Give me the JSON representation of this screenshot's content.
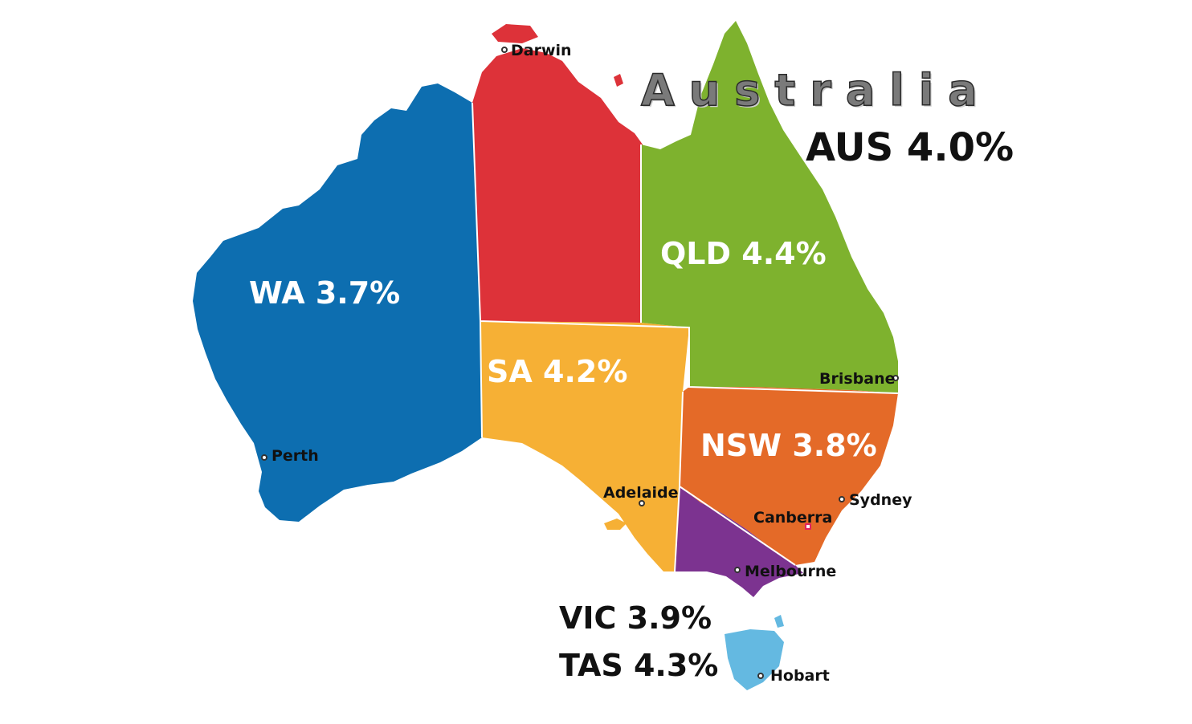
{
  "map": {
    "title": "Australia",
    "national": "AUS 4.0%",
    "colors": {
      "wa": "#0d6eb0",
      "nt": "#dd3239",
      "sa": "#f6b035",
      "qld": "#7eb22e",
      "nsw": "#e46a28",
      "vic": "#7c3390",
      "tas": "#64b9e1"
    },
    "states": [
      {
        "key": "wa",
        "label": "WA 3.7%"
      },
      {
        "key": "sa",
        "label": "SA 4.2%"
      },
      {
        "key": "qld",
        "label": "QLD 4.4%"
      },
      {
        "key": "nsw",
        "label": "NSW 3.8%"
      },
      {
        "key": "vic",
        "label": "VIC 3.9%"
      },
      {
        "key": "tas",
        "label": "TAS 4.3%"
      }
    ],
    "cities": [
      "Darwin",
      "Perth",
      "Adelaide",
      "Brisbane",
      "Sydney",
      "Canberra",
      "Melbourne",
      "Hobart"
    ]
  }
}
